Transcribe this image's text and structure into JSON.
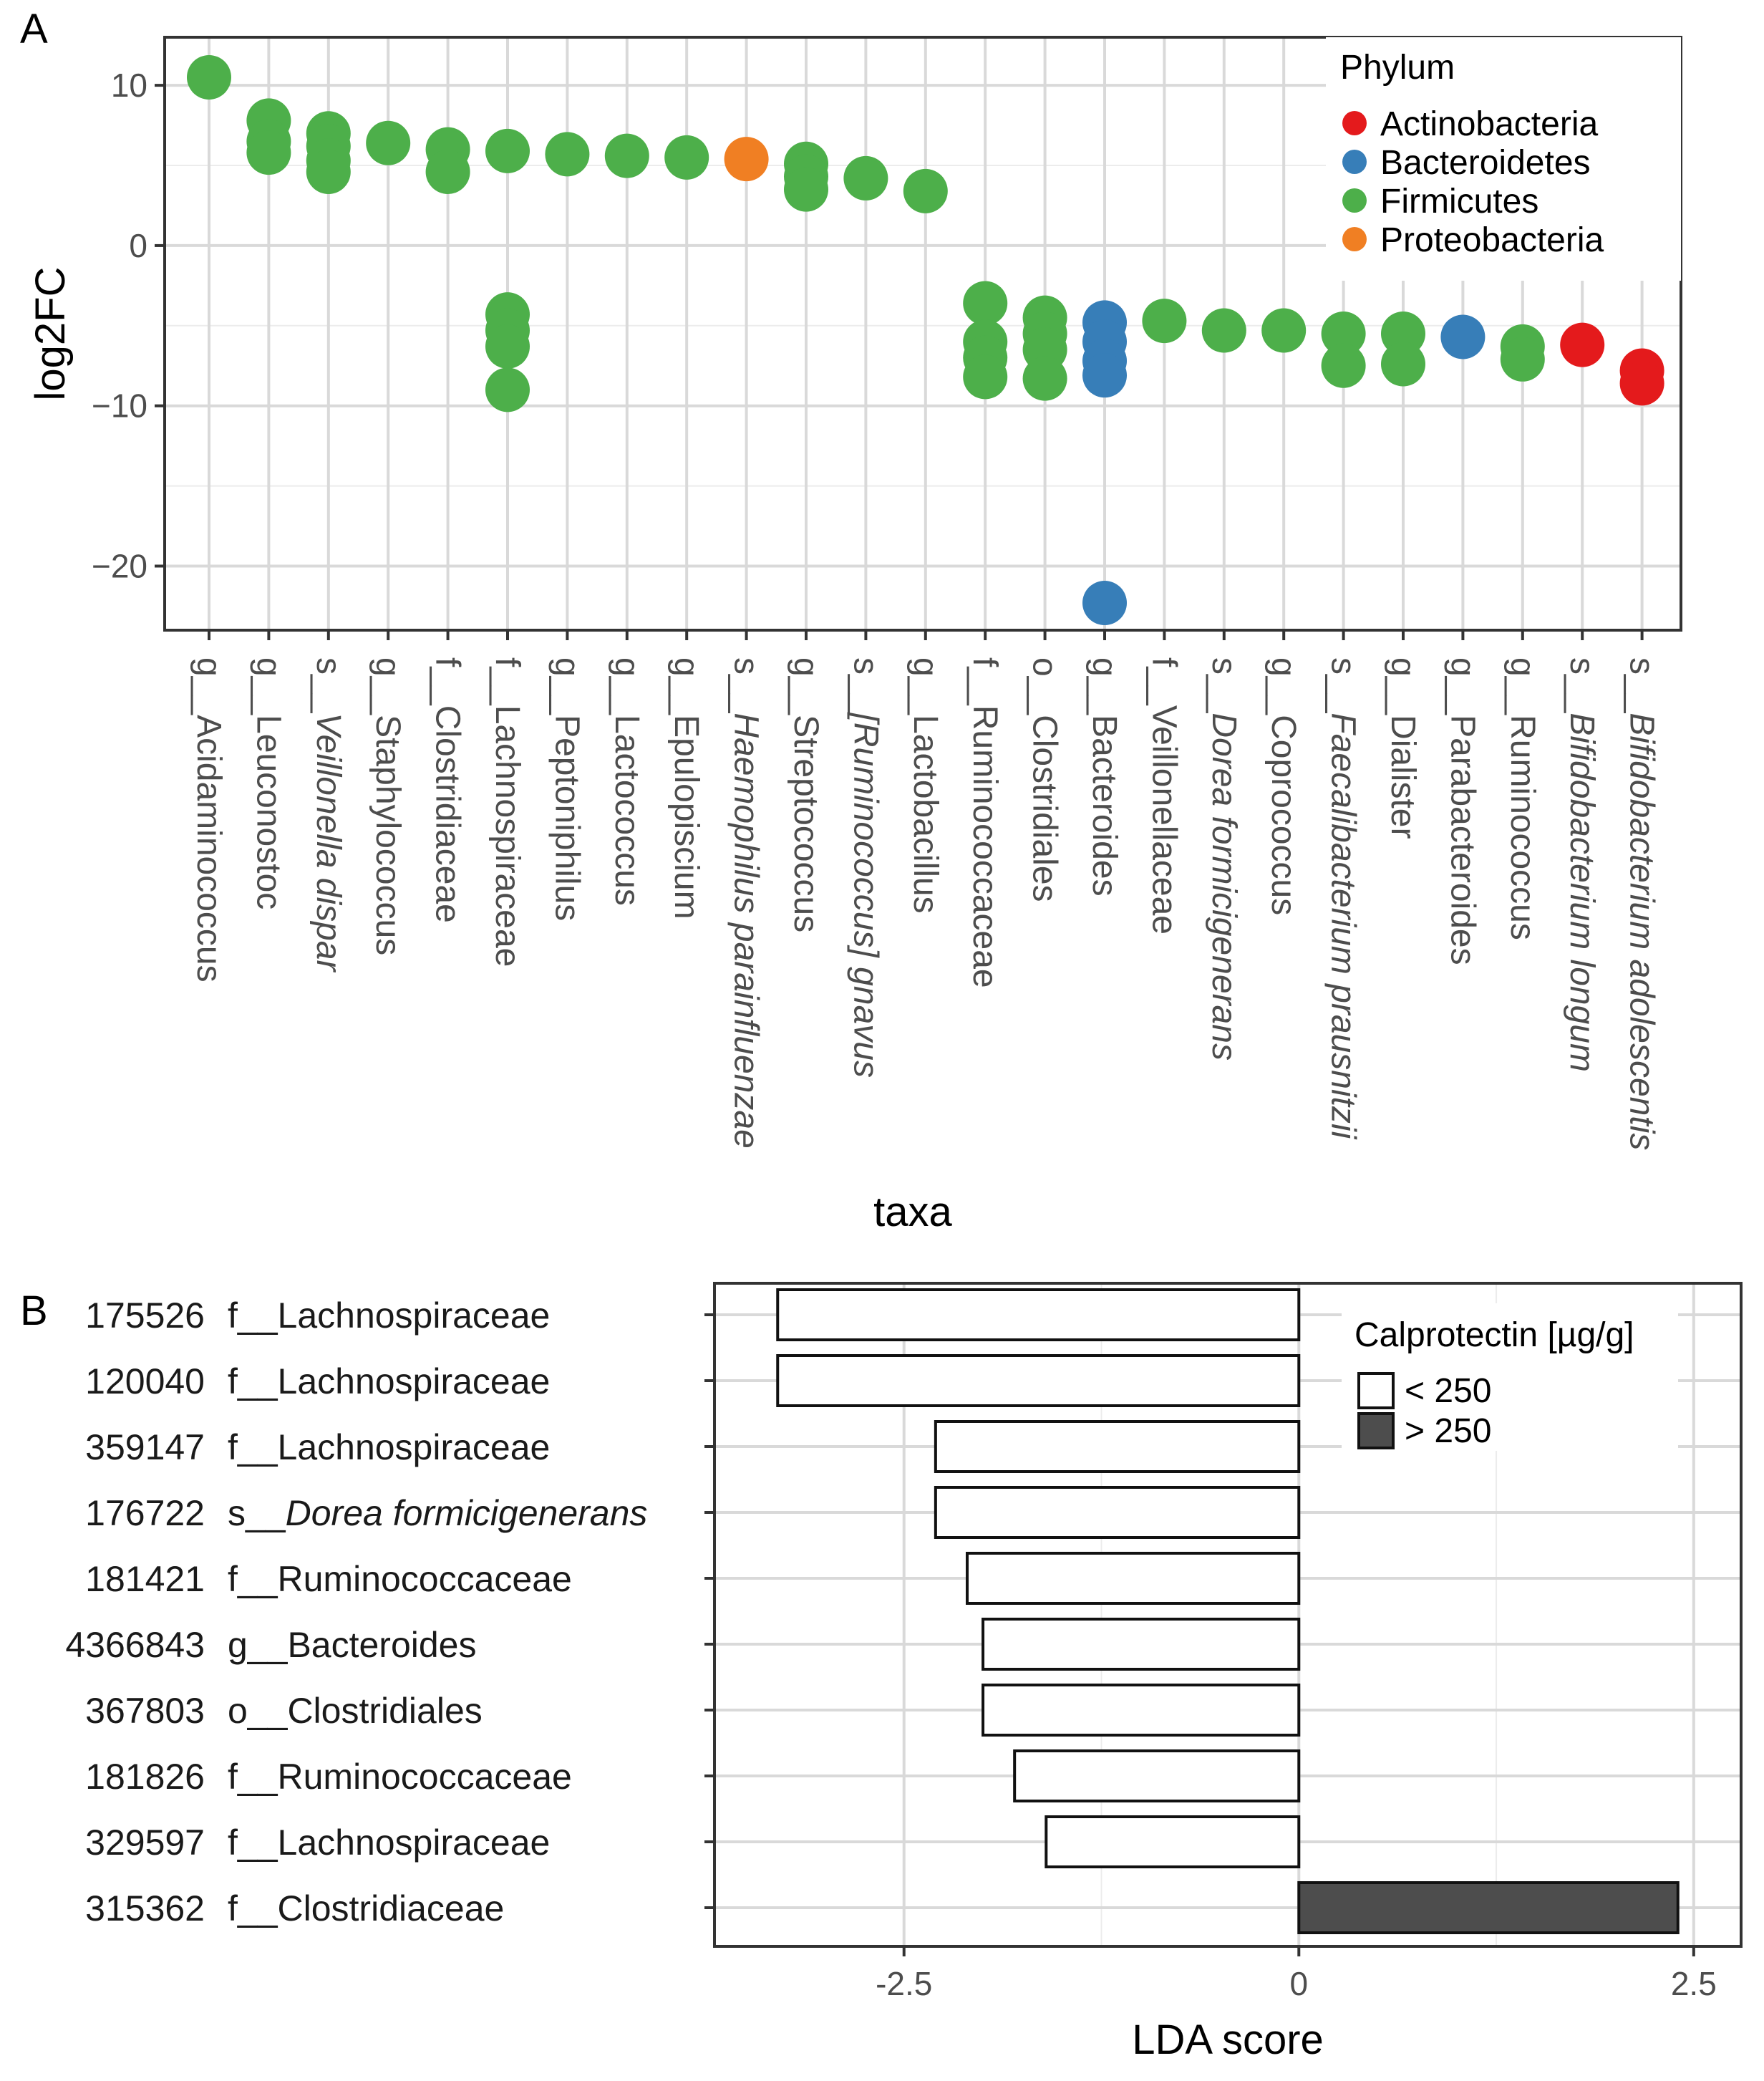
{
  "chart_data": [
    {
      "panel": "A",
      "type": "scatter",
      "xlabel": "taxa",
      "ylabel": "log2FC",
      "ylim": [
        -24,
        13
      ],
      "yticks": [
        10,
        0,
        -10,
        -20
      ],
      "ytick_labels": [
        "10",
        "0",
        "−10",
        "−20"
      ],
      "grid": true,
      "legend_title": "Phylum",
      "legend_position": "top-right",
      "phyla": [
        {
          "name": "Actinobacteria",
          "color": "#e41a1c"
        },
        {
          "name": "Bacteroidetes",
          "color": "#377eb8"
        },
        {
          "name": "Firmicutes",
          "color": "#4daf4a"
        },
        {
          "name": "Proteobacteria",
          "color": "#f07f23"
        }
      ],
      "taxa": [
        {
          "prefix": "g__",
          "name": "Acidaminococcus",
          "italic": false,
          "phylum": "Firmicutes",
          "values": [
            10.5
          ]
        },
        {
          "prefix": "g__",
          "name": "Leuconostoc",
          "italic": false,
          "phylum": "Firmicutes",
          "values": [
            7.8,
            6.5,
            5.8
          ]
        },
        {
          "prefix": "s__",
          "name": "Veillonella dispar",
          "italic": true,
          "phylum": "Firmicutes",
          "values": [
            7.0,
            6.2,
            5.3,
            4.6
          ]
        },
        {
          "prefix": "g__",
          "name": "Staphylococcus",
          "italic": false,
          "phylum": "Firmicutes",
          "values": [
            6.4
          ]
        },
        {
          "prefix": "f__",
          "name": "Clostridiaceae",
          "italic": false,
          "phylum": "Firmicutes",
          "values": [
            6.0,
            4.6
          ]
        },
        {
          "prefix": "f__",
          "name": "Lachnospiraceae",
          "italic": false,
          "phylum": "Firmicutes",
          "values": [
            5.9,
            -4.3,
            -5.3,
            -6.3,
            -9.0
          ]
        },
        {
          "prefix": "g__",
          "name": "Peptoniphilus",
          "italic": false,
          "phylum": "Firmicutes",
          "values": [
            5.7
          ]
        },
        {
          "prefix": "g__",
          "name": "Lactococcus",
          "italic": false,
          "phylum": "Firmicutes",
          "values": [
            5.6
          ]
        },
        {
          "prefix": "g__",
          "name": "Epulopiscium",
          "italic": false,
          "phylum": "Firmicutes",
          "values": [
            5.5
          ]
        },
        {
          "prefix": "s__",
          "name": "Haemophilus parainfluenzae",
          "italic": true,
          "phylum": "Proteobacteria",
          "values": [
            5.4
          ]
        },
        {
          "prefix": "g__",
          "name": "Streptococcus",
          "italic": false,
          "phylum": "Firmicutes",
          "values": [
            5.1,
            4.3,
            3.5
          ]
        },
        {
          "prefix": "s__",
          "name": "[Ruminococcus] gnavus",
          "italic": true,
          "phylum": "Firmicutes",
          "values": [
            4.2
          ]
        },
        {
          "prefix": "g__",
          "name": "Lactobacillus",
          "italic": false,
          "phylum": "Firmicutes",
          "values": [
            3.4
          ]
        },
        {
          "prefix": "f__",
          "name": "Ruminococcaceae",
          "italic": false,
          "phylum": "Firmicutes",
          "values": [
            -3.6,
            -6.0,
            -7.0,
            -8.2
          ]
        },
        {
          "prefix": "o__",
          "name": "Clostridiales",
          "italic": false,
          "phylum": "Firmicutes",
          "values": [
            -4.5,
            -5.5,
            -6.5,
            -8.3
          ]
        },
        {
          "prefix": "g__",
          "name": "Bacteroides",
          "italic": false,
          "phylum": "Bacteroidetes",
          "values": [
            -4.8,
            -6.0,
            -7.2,
            -8.1,
            -22.3
          ]
        },
        {
          "prefix": "f__",
          "name": "Veillonellaceae",
          "italic": false,
          "phylum": "Firmicutes",
          "values": [
            -4.7
          ]
        },
        {
          "prefix": "s__",
          "name": "Dorea formicigenerans",
          "italic": true,
          "phylum": "Firmicutes",
          "values": [
            -5.3
          ]
        },
        {
          "prefix": "g__",
          "name": "Coprococcus",
          "italic": false,
          "phylum": "Firmicutes",
          "values": [
            -5.3
          ]
        },
        {
          "prefix": "s__",
          "name": "Faecalibacterium prausnitzii",
          "italic": true,
          "phylum": "Firmicutes",
          "values": [
            -5.5,
            -7.5
          ]
        },
        {
          "prefix": "g__",
          "name": "Dialister",
          "italic": false,
          "phylum": "Firmicutes",
          "values": [
            -5.5,
            -7.4
          ]
        },
        {
          "prefix": "g__",
          "name": "Parabacteroides",
          "italic": false,
          "phylum": "Bacteroidetes",
          "values": [
            -5.7
          ]
        },
        {
          "prefix": "g__",
          "name": "Ruminococcus",
          "italic": false,
          "phylum": "Firmicutes",
          "values": [
            -6.3,
            -7.1
          ]
        },
        {
          "prefix": "s__",
          "name": "Bifidobacterium longum",
          "italic": true,
          "phylum": "Actinobacteria",
          "values": [
            -6.2
          ]
        },
        {
          "prefix": "s__",
          "name": "Bifidobacterium adolescentis",
          "italic": true,
          "phylum": "Actinobacteria",
          "values": [
            -7.8,
            -8.6
          ]
        }
      ]
    },
    {
      "panel": "B",
      "type": "bar",
      "orientation": "horizontal",
      "xlabel": "LDA score",
      "ylabel": "",
      "xlim": [
        -3.7,
        2.8
      ],
      "xticks": [
        -2.5,
        0,
        2.5
      ],
      "xtick_labels": [
        "-2.5",
        "0",
        "2.5"
      ],
      "grid": true,
      "legend_title": "Calprotectin [µg/g]",
      "legend_position": "top-right",
      "groups": [
        {
          "label": "< 250",
          "color": "#ffffff"
        },
        {
          "label": "> 250",
          "color": "#4d4d4d"
        }
      ],
      "bars": [
        {
          "id": "175526",
          "prefix": "f__",
          "name": "Lachnospiraceae",
          "italic": false,
          "value": -3.3,
          "group": "< 250"
        },
        {
          "id": "120040",
          "prefix": "f__",
          "name": "Lachnospiraceae",
          "italic": false,
          "value": -3.3,
          "group": "< 250"
        },
        {
          "id": "359147",
          "prefix": "f__",
          "name": "Lachnospiraceae",
          "italic": false,
          "value": -2.3,
          "group": "< 250"
        },
        {
          "id": "176722",
          "prefix": "s__",
          "name": "Dorea formicigenerans",
          "italic": true,
          "value": -2.3,
          "group": "< 250"
        },
        {
          "id": "181421",
          "prefix": "f__",
          "name": "Ruminococcaceae",
          "italic": false,
          "value": -2.1,
          "group": "< 250"
        },
        {
          "id": "4366843",
          "prefix": "g__",
          "name": "Bacteroides",
          "italic": false,
          "value": -2.0,
          "group": "< 250"
        },
        {
          "id": "367803",
          "prefix": "o__",
          "name": "Clostridiales",
          "italic": false,
          "value": -2.0,
          "group": "< 250"
        },
        {
          "id": "181826",
          "prefix": "f__",
          "name": "Ruminococcaceae",
          "italic": false,
          "value": -1.8,
          "group": "< 250"
        },
        {
          "id": "329597",
          "prefix": "f__",
          "name": "Lachnospiraceae",
          "italic": false,
          "value": -1.6,
          "group": "< 250"
        },
        {
          "id": "315362",
          "prefix": "f__",
          "name": "Clostridiaceae",
          "italic": false,
          "value": 2.4,
          "group": "> 250"
        }
      ]
    }
  ]
}
